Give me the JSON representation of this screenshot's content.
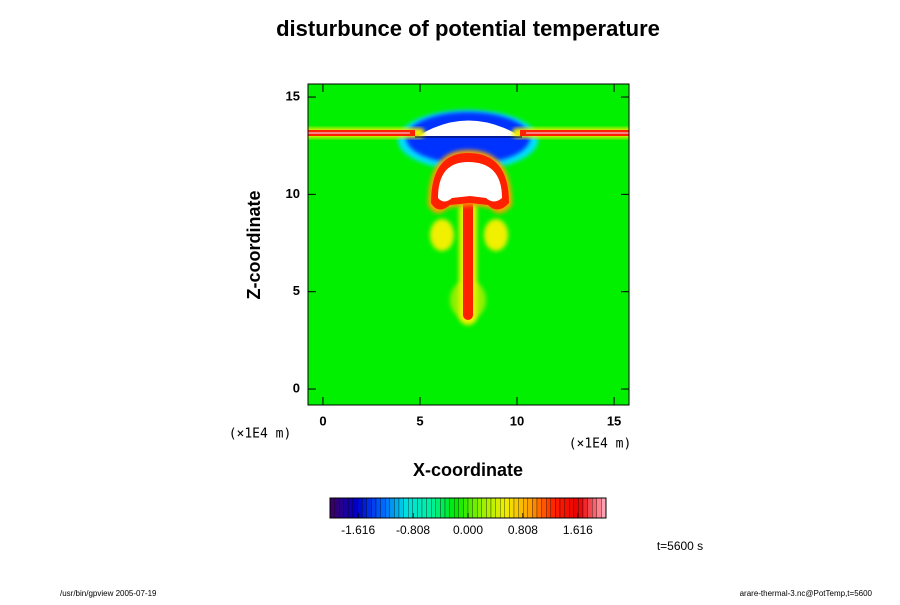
{
  "chart_data": {
    "type": "contour",
    "title": "disturbunce of potential temperature",
    "xlabel": "X-coordinate",
    "ylabel": "Z-coordinate",
    "xunit": "(×1E4 m)",
    "yunit": "(×1E4 m)",
    "xlim": [
      -0.77,
      15.77
    ],
    "ylim": [
      -0.82,
      15.67
    ],
    "xticks": [
      0,
      5,
      10,
      15
    ],
    "yticks": [
      0,
      5,
      10,
      15
    ],
    "colorbar": {
      "lim": [
        -2.03,
        2.03
      ],
      "ticks": [
        -1.616,
        -0.808,
        {
          "value": 0,
          "label": "0.000"
        },
        0.808,
        1.616
      ],
      "colors": [
        "#3a006a",
        "#0000c8",
        "#0060ff",
        "#00e0e0",
        "#00f0a0",
        "#00e800",
        "#90f000",
        "#f0f000",
        "#ffa000",
        "#ff2000",
        "#e80000",
        "#ffa0b0"
      ]
    },
    "time_label": "t=5600 s",
    "footer_left": "/usr/bin/gpview 2005-07-19",
    "footer_right": "arare-thermal-3.nc@PotTemp,t=5600"
  }
}
